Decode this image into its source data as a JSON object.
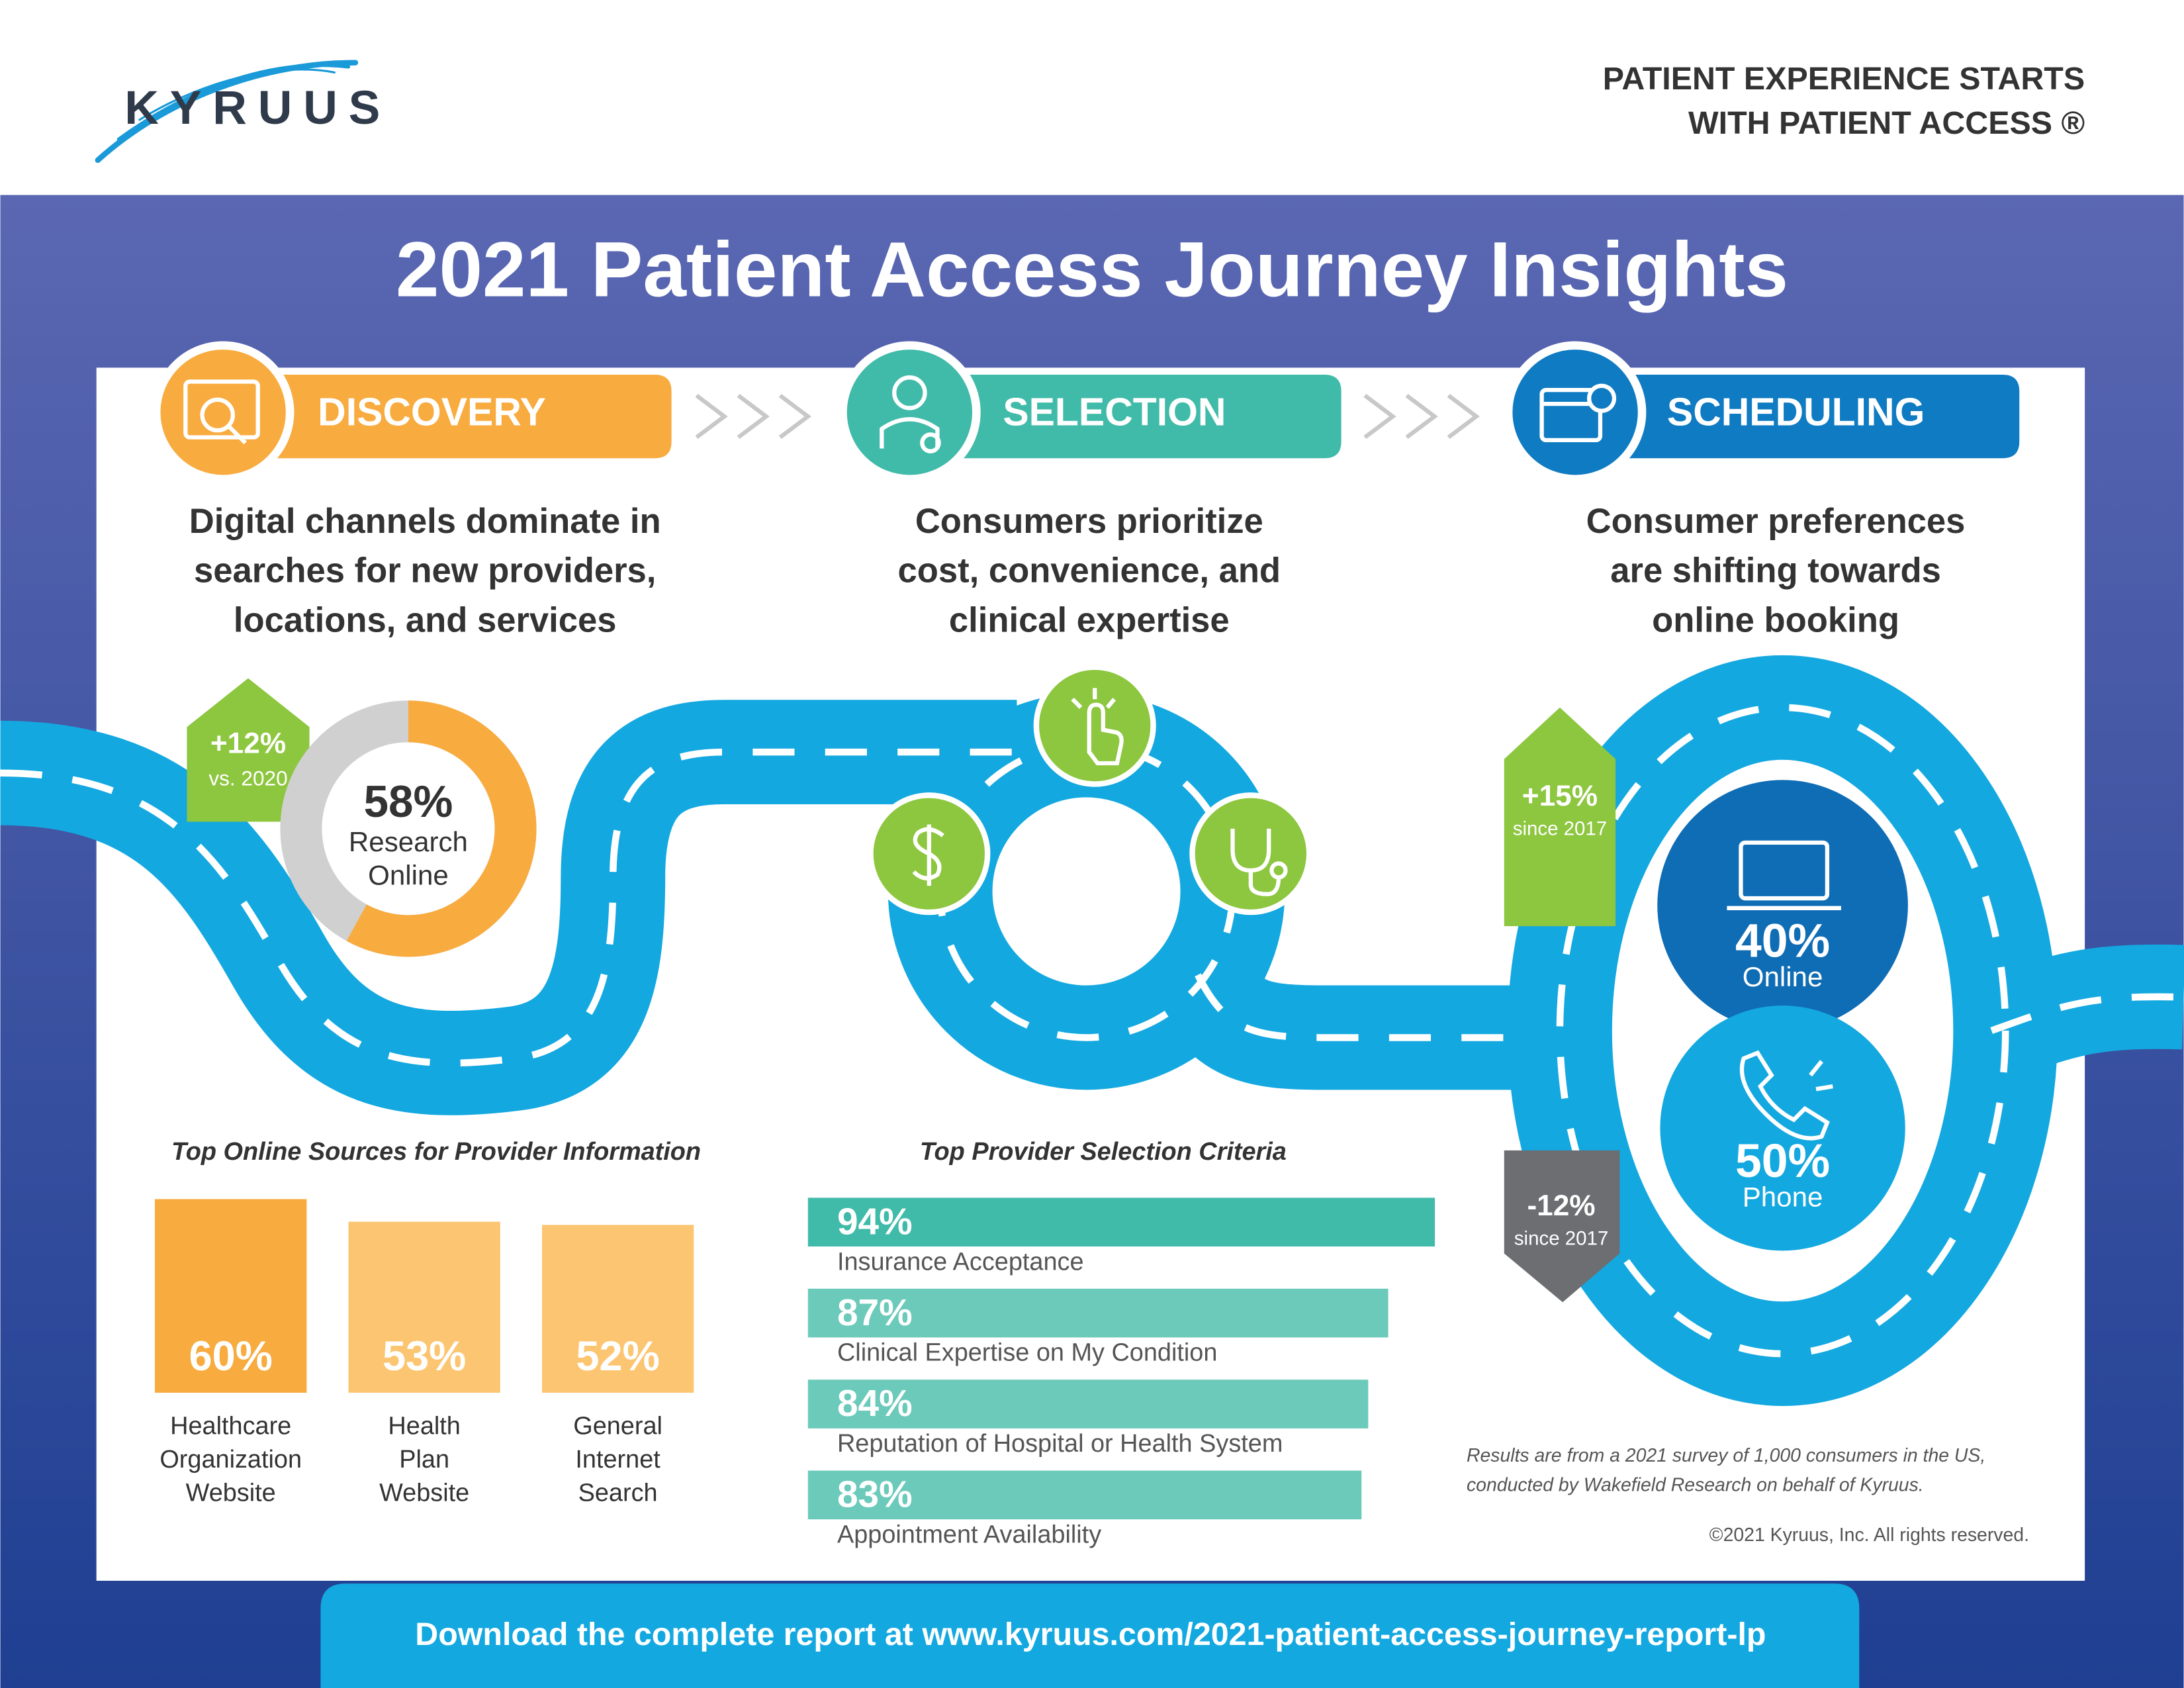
{
  "header": {
    "logo": "KYRUUS",
    "tagline": [
      "PATIENT EXPERIENCE STARTS",
      "WITH PATIENT ACCESS ®"
    ]
  },
  "title": "2021 Patient Access Journey Insights",
  "stages": [
    {
      "label": "DISCOVERY",
      "headline": [
        "Digital channels dominate in",
        "searches for new providers,",
        "locations, and services"
      ]
    },
    {
      "label": "SELECTION",
      "headline": [
        "Consumers prioritize",
        "cost, convenience, and",
        "clinical expertise"
      ]
    },
    {
      "label": "SCHEDULING",
      "headline": [
        "Consumer preferences",
        "are shifting towards",
        "online booking"
      ]
    }
  ],
  "discovery": {
    "donut": {
      "value": 58,
      "value_label": "58%",
      "label": [
        "Research",
        "Online"
      ]
    },
    "change": {
      "label": "+12%",
      "note": "vs. 2020"
    },
    "chart": {
      "title": "Top Online Sources for Provider Information",
      "categories": [
        [
          "Healthcare",
          "Organization",
          "Website"
        ],
        [
          "Health",
          "Plan",
          "Website"
        ],
        [
          "General",
          "Internet",
          "Search"
        ]
      ],
      "values": [
        60,
        53,
        52
      ],
      "value_labels": [
        "60%",
        "53%",
        "52%"
      ]
    }
  },
  "selection": {
    "chart": {
      "title": "Top Provider Selection Criteria",
      "categories": [
        "Insurance Acceptance",
        "Clinical Expertise on My Condition",
        "Reputation of Hospital or Health System",
        "Appointment Availability"
      ],
      "values": [
        94,
        87,
        84,
        83
      ],
      "value_labels": [
        "94%",
        "87%",
        "84%",
        "83%"
      ]
    }
  },
  "scheduling": {
    "online": {
      "value_label": "40%",
      "label": "Online",
      "change": {
        "label": "+15%",
        "note": "since 2017"
      }
    },
    "phone": {
      "value_label": "50%",
      "label": "Phone",
      "change": {
        "label": "-12%",
        "note": "since 2017"
      }
    }
  },
  "footnote": [
    "Results are from a 2021 survey of 1,000 consumers in the US,",
    "conducted by Wakefield Research on behalf of Kyruus."
  ],
  "copyright": "©2021 Kyruus, Inc. All rights reserved.",
  "footer": "Download the complete report at www.kyruus.com/2021-patient-access-journey-report-lp"
}
